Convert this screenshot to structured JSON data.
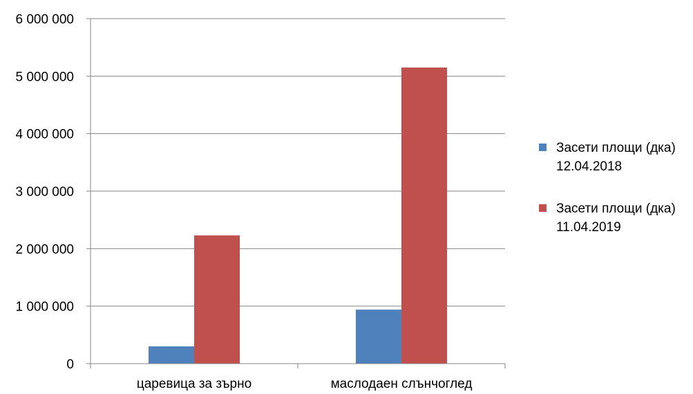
{
  "chart_data": {
    "type": "bar",
    "categories": [
      "царевица за зърно",
      "маслодаен слънчоглед"
    ],
    "series": [
      {
        "name": "Засети площи (дка) 12.04.2018",
        "name_lines": [
          "Засети площи (дка)",
          "12.04.2018"
        ],
        "color": "#4F81BD",
        "values": [
          300000,
          940000
        ]
      },
      {
        "name": "Засети площи (дка) 11.04.2019",
        "name_lines": [
          "Засети площи (дка)",
          "11.04.2019"
        ],
        "color": "#C0504D",
        "values": [
          2230000,
          5150000
        ]
      }
    ],
    "ylim": [
      0,
      6000000
    ],
    "yticks": [
      0,
      1000000,
      2000000,
      3000000,
      4000000,
      5000000,
      6000000
    ],
    "ytick_labels": [
      "0",
      "1 000 000",
      "2 000 000",
      "3 000 000",
      "4 000 000",
      "5 000 000",
      "6 000 000"
    ],
    "grid": true,
    "legend_position": "right"
  }
}
